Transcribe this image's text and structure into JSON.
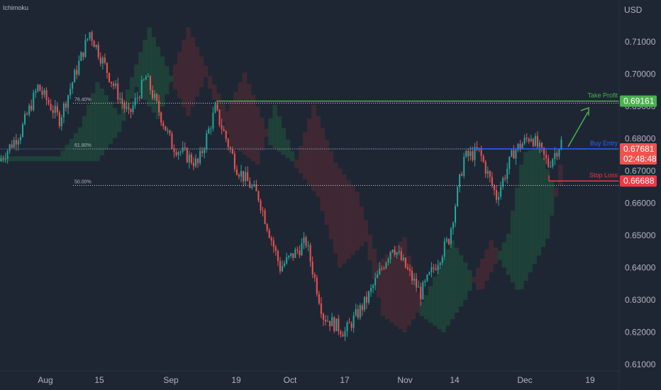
{
  "indicator_label": "Ichimoku",
  "currency_label": "USD",
  "colors": {
    "background": "#1e2634",
    "bull": "#26a69a",
    "bear": "#ef5350",
    "take_profit": "#4caf50",
    "stop_loss": "#f23645",
    "entry": "#2962ff",
    "cloud_bull": "#1f4a3a",
    "cloud_bear": "#4a2a33"
  },
  "chart_data": {
    "type": "candlestick",
    "x_ticks": [
      "Aug",
      "15",
      "Sep",
      "19",
      "Oct",
      "17",
      "Nov",
      "14",
      "Dec",
      "19"
    ],
    "y_ticks": [
      "0.71000",
      "0.70000",
      "0.69000",
      "0.68000",
      "0.67000",
      "0.66000",
      "0.65000",
      "0.64000",
      "0.63000",
      "0.62000",
      "0.61000"
    ],
    "ylim": [
      0.6095,
      0.7195
    ],
    "price_path": [
      {
        "t": 0,
        "p": 0.673
      },
      {
        "t": 10,
        "p": 0.682
      },
      {
        "t": 18,
        "p": 0.696
      },
      {
        "t": 28,
        "p": 0.686
      },
      {
        "t": 42,
        "p": 0.713
      },
      {
        "t": 52,
        "p": 0.698
      },
      {
        "t": 60,
        "p": 0.687
      },
      {
        "t": 68,
        "p": 0.699
      },
      {
        "t": 80,
        "p": 0.678
      },
      {
        "t": 92,
        "p": 0.672
      },
      {
        "t": 100,
        "p": 0.689
      },
      {
        "t": 110,
        "p": 0.671
      },
      {
        "t": 120,
        "p": 0.662
      },
      {
        "t": 130,
        "p": 0.64
      },
      {
        "t": 142,
        "p": 0.648
      },
      {
        "t": 150,
        "p": 0.625
      },
      {
        "t": 160,
        "p": 0.62
      },
      {
        "t": 170,
        "p": 0.63
      },
      {
        "t": 182,
        "p": 0.647
      },
      {
        "t": 195,
        "p": 0.632
      },
      {
        "t": 208,
        "p": 0.649
      },
      {
        "t": 215,
        "p": 0.674
      },
      {
        "t": 222,
        "p": 0.676
      },
      {
        "t": 230,
        "p": 0.662
      },
      {
        "t": 238,
        "p": 0.676
      },
      {
        "t": 246,
        "p": 0.681
      },
      {
        "t": 254,
        "p": 0.672
      },
      {
        "t": 260,
        "p": 0.679
      }
    ],
    "fib_levels": [
      {
        "label": "76.40%",
        "value": 0.691
      },
      {
        "label": "61.80%",
        "value": 0.6768
      },
      {
        "label": "50.00%",
        "value": 0.6655
      }
    ],
    "take_profit": {
      "label": "Take Profit",
      "value": 0.69161,
      "value_text": "0.69161"
    },
    "entry": {
      "label": "Buy Entry",
      "value": 0.67681,
      "value_text": "0.67681",
      "countdown": "02:48:48"
    },
    "stop_loss": {
      "label": "Stop Loss",
      "value": 0.66688,
      "value_text": "0.66688"
    }
  }
}
